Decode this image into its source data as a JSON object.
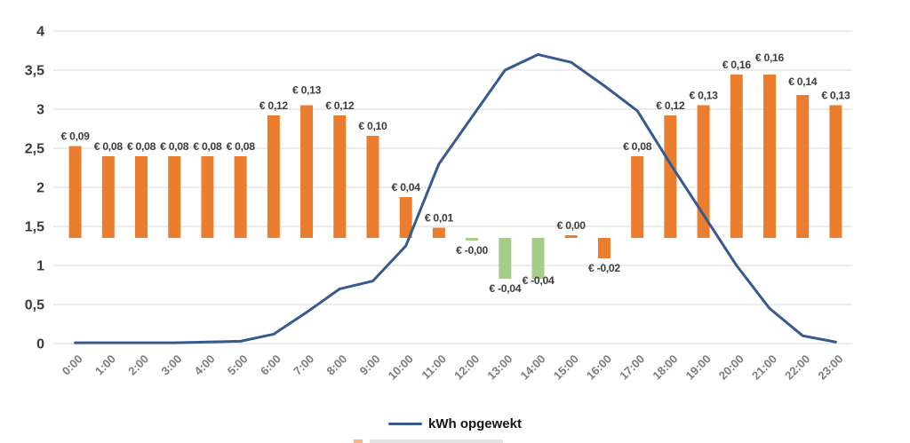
{
  "chart_data": {
    "type": "bar+line",
    "title": "",
    "categories": [
      "0:00",
      "1:00",
      "2:00",
      "3:00",
      "4:00",
      "5:00",
      "6:00",
      "7:00",
      "8:00",
      "9:00",
      "10:00",
      "11:00",
      "12:00",
      "13:00",
      "14:00",
      "15:00",
      "16:00",
      "17:00",
      "18:00",
      "19:00",
      "20:00",
      "21:00",
      "22:00",
      "23:00"
    ],
    "y_axis": {
      "min": 0,
      "max": 4,
      "tick_values": [
        0,
        0.5,
        1,
        1.5,
        2,
        2.5,
        3,
        3.5,
        4
      ],
      "tick_labels": [
        "0",
        "0,5",
        "1",
        "1,5",
        "2",
        "2,5",
        "3",
        "3,5",
        "4"
      ],
      "grid": true
    },
    "bar_axis_hint": {
      "note": "price bars drawn on hidden secondary euro axis",
      "baseline_at_primary_value": 1.35
    },
    "bars": [
      {
        "hour": "0:00",
        "label": "€ 0,09",
        "value": 0.09,
        "color": "orange"
      },
      {
        "hour": "1:00",
        "label": "€ 0,08",
        "value": 0.08,
        "color": "orange"
      },
      {
        "hour": "2:00",
        "label": "€ 0,08",
        "value": 0.08,
        "color": "orange"
      },
      {
        "hour": "3:00",
        "label": "€ 0,08",
        "value": 0.08,
        "color": "orange"
      },
      {
        "hour": "4:00",
        "label": "€ 0,08",
        "value": 0.08,
        "color": "orange"
      },
      {
        "hour": "5:00",
        "label": "€ 0,08",
        "value": 0.08,
        "color": "orange"
      },
      {
        "hour": "6:00",
        "label": "€ 0,12",
        "value": 0.12,
        "color": "orange"
      },
      {
        "hour": "7:00",
        "label": "€ 0,13",
        "value": 0.13,
        "color": "orange",
        "label_dy": -6
      },
      {
        "hour": "8:00",
        "label": "€ 0,12",
        "value": 0.12,
        "color": "orange"
      },
      {
        "hour": "9:00",
        "label": "€ 0,10",
        "value": 0.1,
        "color": "orange"
      },
      {
        "hour": "10:00",
        "label": "€ 0,04",
        "value": 0.04,
        "color": "orange"
      },
      {
        "hour": "11:00",
        "label": "€ 0,01",
        "value": 0.01,
        "color": "orange"
      },
      {
        "hour": "12:00",
        "label": "€ -0,00",
        "value": -0.002,
        "color": "green"
      },
      {
        "hour": "13:00",
        "label": "€ -0,04",
        "value": -0.04,
        "color": "green"
      },
      {
        "hour": "14:00",
        "label": "€ -0,04",
        "value": -0.04,
        "color": "green",
        "label_dy": -9
      },
      {
        "hour": "15:00",
        "label": "€ 0,00",
        "value": 0.002,
        "color": "orange"
      },
      {
        "hour": "16:00",
        "label": "€ -0,02",
        "value": -0.02,
        "color": "orange"
      },
      {
        "hour": "17:00",
        "label": "€ 0,08",
        "value": 0.08,
        "color": "orange"
      },
      {
        "hour": "18:00",
        "label": "€ 0,12",
        "value": 0.12,
        "color": "orange"
      },
      {
        "hour": "19:00",
        "label": "€ 0,13",
        "value": 0.13,
        "color": "orange"
      },
      {
        "hour": "20:00",
        "label": "€ 0,16",
        "value": 0.16,
        "color": "orange"
      },
      {
        "hour": "21:00",
        "label": "€ 0,16",
        "value": 0.16,
        "color": "orange",
        "label_dy": -8
      },
      {
        "hour": "22:00",
        "label": "€ 0,14",
        "value": 0.14,
        "color": "orange",
        "label_dy": -4
      },
      {
        "hour": "23:00",
        "label": "€ 0,13",
        "value": 0.13,
        "color": "orange"
      }
    ],
    "line": {
      "name": "kWh opgewekt",
      "values": [
        0.01,
        0.01,
        0.01,
        0.01,
        0.02,
        0.03,
        0.12,
        0.4,
        0.7,
        0.8,
        1.25,
        2.3,
        2.9,
        3.5,
        3.7,
        3.6,
        3.3,
        2.98,
        2.3,
        1.65,
        1.0,
        0.45,
        0.1,
        0.02
      ]
    },
    "legend": {
      "position": "bottom-center",
      "items": [
        {
          "label": "kWh opgewekt",
          "marker": "line"
        }
      ]
    },
    "colors": {
      "orange": "#EB7D2F",
      "green": "#A6CC8B",
      "line": "#36598E",
      "grid": "#D9D9D9"
    }
  }
}
